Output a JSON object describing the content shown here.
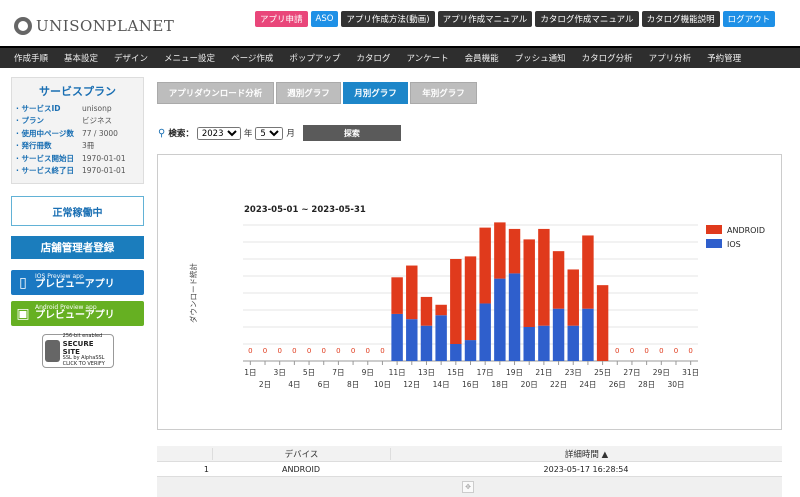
{
  "header": {
    "logo_text": "UNISONPLANET",
    "buttons": [
      {
        "label": "アプリ申請",
        "style": "pink"
      },
      {
        "label": "ASO",
        "style": "blue"
      },
      {
        "label": "アプリ作成方法(動画)",
        "style": "dark"
      },
      {
        "label": "アプリ作成マニュアル",
        "style": "dark"
      },
      {
        "label": "カタログ作成マニュアル",
        "style": "dark"
      },
      {
        "label": "カタログ機能説明",
        "style": "dark"
      },
      {
        "label": "ログアウト",
        "style": "blue"
      }
    ]
  },
  "main_nav": [
    "作成手順",
    "基本設定",
    "デザイン",
    "メニュー設定",
    "ページ作成",
    "ポップアップ",
    "カタログ",
    "アンケート",
    "会員機能",
    "プッシュ通知",
    "カタログ分析",
    "アプリ分析",
    "予約管理"
  ],
  "sidebar": {
    "plan_title": "サービスプラン",
    "rows": [
      {
        "key": "サービスID",
        "value": "unisonp"
      },
      {
        "key": "プラン",
        "value": "ビジネス"
      },
      {
        "key": "使用中ページ数",
        "value": "77 / 3000"
      },
      {
        "key": "発行冊数",
        "value": "3冊"
      },
      {
        "key": "サービス開始日",
        "value": "1970-01-01"
      },
      {
        "key": "サービス終了日",
        "value": "1970-01-01"
      }
    ],
    "status": "正常稼働中",
    "register_label": "店舗管理者登録",
    "ios_small": "IOS Preview app",
    "ios_big": "プレビューアプリ",
    "android_small": "Android Preview app",
    "android_big": "プレビューアプリ",
    "ssl": {
      "line1": "256-bit enabled",
      "line2": "SECURE SITE",
      "line3": "SSL by AlphaSSL",
      "line4": "CLICK TO VERIFY"
    }
  },
  "tabs": [
    {
      "label": "アプリダウンロード分析",
      "active": false
    },
    {
      "label": "週別グラフ",
      "active": false
    },
    {
      "label": "月別グラフ",
      "active": true
    },
    {
      "label": "年別グラフ",
      "active": false
    }
  ],
  "search": {
    "label": "検索：",
    "year": "2023",
    "year_unit": "年",
    "month": "5",
    "month_unit": "月",
    "button": "探索"
  },
  "chart_data": {
    "type": "bar",
    "stacked": true,
    "title": "2023-05-01 ~ 2023-05-31",
    "ylabel": "ダウンロード統計",
    "legend_position": "top-right",
    "categories": [
      "1日",
      "2日",
      "3日",
      "4日",
      "5日",
      "6日",
      "7日",
      "8日",
      "9日",
      "10日",
      "11日",
      "12日",
      "13日",
      "14日",
      "15日",
      "16日",
      "17日",
      "18日",
      "19日",
      "20日",
      "21日",
      "22日",
      "23日",
      "24日",
      "25日",
      "26日",
      "27日",
      "28日",
      "29日",
      "30日",
      "31日"
    ],
    "zero_label": "0",
    "series": [
      {
        "name": "IOS",
        "color": "#2f5fcc",
        "values": [
          0,
          0,
          0,
          0,
          0,
          0,
          0,
          0,
          0,
          0,
          36,
          32,
          27,
          35,
          13,
          16,
          44,
          63,
          67,
          26,
          27,
          40,
          27,
          40,
          0,
          0,
          0,
          0,
          0,
          0,
          0
        ]
      },
      {
        "name": "ANDROID",
        "color": "#e03a1c",
        "values": [
          0,
          0,
          0,
          0,
          0,
          0,
          0,
          0,
          0,
          0,
          28,
          41,
          22,
          8,
          65,
          64,
          58,
          43,
          34,
          67,
          74,
          44,
          43,
          56,
          58,
          0,
          0,
          0,
          0,
          0,
          0
        ]
      }
    ],
    "ylim": [
      0,
      104
    ],
    "grid": true
  },
  "table": {
    "headers": [
      "",
      "デバイス",
      "詳細時間 ▲"
    ],
    "rows": [
      [
        "1",
        "ANDROID",
        "2023-05-17 16:28:54"
      ]
    ]
  }
}
